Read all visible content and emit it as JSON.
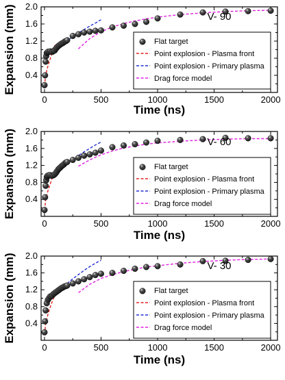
{
  "chart_data": [
    {
      "type": "scatter",
      "panel_label": "V- 90",
      "xlabel": "Time  (ns)",
      "ylabel": "Expansion  (mm)",
      "xlim": [
        -30,
        2060
      ],
      "ylim": [
        0.0,
        2.0
      ],
      "xticks": [
        0,
        500,
        1000,
        1500,
        2000
      ],
      "yticks": [
        0.4,
        0.8,
        1.2,
        1.6,
        2.0
      ],
      "ytick_labels": [
        "0.4",
        "0.8",
        "1.2",
        "1.6",
        "2.0"
      ],
      "legend": [
        "Flat target",
        "Point explosion - Plasma front",
        "Point explosion - Primary plasma",
        "Drag force model"
      ],
      "series": [
        {
          "name": "Flat target",
          "style": "marker",
          "x": [
            0,
            5,
            10,
            15,
            20,
            25,
            30,
            40,
            50,
            60,
            70,
            80,
            90,
            100,
            110,
            120,
            130,
            140,
            150,
            160,
            170,
            180,
            190,
            200,
            250,
            300,
            350,
            400,
            450,
            500,
            600,
            700,
            800,
            900,
            1000,
            1200,
            1400,
            1600,
            1800,
            2000
          ],
          "y": [
            0.17,
            0.4,
            0.72,
            0.85,
            0.92,
            0.93,
            0.95,
            0.95,
            0.96,
            0.95,
            0.95,
            0.97,
            0.98,
            1.02,
            1.05,
            1.08,
            1.1,
            1.12,
            1.14,
            1.15,
            1.17,
            1.19,
            1.2,
            1.22,
            1.32,
            1.36,
            1.4,
            1.42,
            1.44,
            1.45,
            1.52,
            1.56,
            1.6,
            1.65,
            1.73,
            1.82,
            1.87,
            1.89,
            1.9,
            1.91
          ]
        },
        {
          "name": "Point explosion - Plasma front",
          "style": "dash",
          "x": [
            0,
            10,
            20,
            30,
            40,
            50,
            60,
            70,
            80,
            90,
            100
          ],
          "y": [
            0.15,
            0.39,
            0.52,
            0.61,
            0.7,
            0.78,
            0.86,
            0.94,
            1.01,
            1.08,
            1.15
          ]
        },
        {
          "name": "Point explosion - Primary plasma",
          "style": "dash",
          "x": [
            60,
            80,
            100,
            150,
            200,
            250,
            300,
            350,
            400,
            450,
            500
          ],
          "y": [
            0.9,
            0.95,
            1.0,
            1.11,
            1.21,
            1.3,
            1.39,
            1.47,
            1.55,
            1.62,
            1.7
          ]
        },
        {
          "name": "Drag force model",
          "style": "dash",
          "x": [
            300,
            400,
            500,
            600,
            700,
            800,
            900,
            1000,
            1200,
            1400,
            1600,
            1800,
            2000
          ],
          "y": [
            1.02,
            1.26,
            1.42,
            1.53,
            1.61,
            1.67,
            1.72,
            1.76,
            1.82,
            1.86,
            1.89,
            1.91,
            1.92
          ]
        }
      ]
    },
    {
      "type": "scatter",
      "panel_label": "V- 60",
      "xlabel": "Time  (ns)",
      "ylabel": "Expansion  (mm)",
      "xlim": [
        -30,
        2060
      ],
      "ylim": [
        0.0,
        2.0
      ],
      "xticks": [
        0,
        500,
        1000,
        1500,
        2000
      ],
      "yticks": [
        0.4,
        0.8,
        1.2,
        1.6,
        2.0
      ],
      "ytick_labels": [
        "0.4",
        "0.8",
        "1.2",
        "1.6",
        "2.0"
      ],
      "legend": [
        "Flat target",
        "Point explosion - Plasma front",
        "Point explosion - Primary plasma",
        "Drag force model"
      ],
      "series": [
        {
          "name": "Flat target",
          "style": "marker",
          "x": [
            0,
            5,
            10,
            15,
            20,
            25,
            30,
            40,
            50,
            60,
            70,
            80,
            90,
            100,
            110,
            120,
            130,
            140,
            150,
            160,
            170,
            180,
            190,
            200,
            250,
            300,
            350,
            400,
            450,
            500,
            600,
            700,
            800,
            900,
            1000,
            1200,
            1400,
            1600,
            1800,
            2000
          ],
          "y": [
            0.15,
            0.45,
            0.72,
            0.85,
            0.92,
            0.95,
            0.96,
            0.97,
            0.97,
            0.96,
            0.96,
            0.97,
            0.99,
            1.02,
            1.06,
            1.1,
            1.13,
            1.15,
            1.18,
            1.2,
            1.22,
            1.25,
            1.27,
            1.28,
            1.33,
            1.38,
            1.43,
            1.46,
            1.5,
            1.55,
            1.63,
            1.67,
            1.7,
            1.74,
            1.78,
            1.8,
            1.82,
            1.85,
            1.84,
            1.84
          ]
        },
        {
          "name": "Point explosion - Plasma front",
          "style": "dash",
          "x": [
            0,
            10,
            20,
            30,
            40,
            50,
            60,
            70,
            80,
            90,
            100
          ],
          "y": [
            0.15,
            0.37,
            0.5,
            0.6,
            0.68,
            0.76,
            0.84,
            0.92,
            0.99,
            1.06,
            1.12
          ]
        },
        {
          "name": "Point explosion - Primary plasma",
          "style": "dash",
          "x": [
            60,
            80,
            100,
            150,
            200,
            250,
            300,
            350,
            400,
            450,
            500
          ],
          "y": [
            0.92,
            0.98,
            1.03,
            1.14,
            1.24,
            1.34,
            1.43,
            1.52,
            1.6,
            1.68,
            1.75
          ]
        },
        {
          "name": "Drag force model",
          "style": "dash",
          "x": [
            300,
            400,
            500,
            600,
            700,
            800,
            900,
            1000,
            1200,
            1400,
            1600,
            1800,
            2000
          ],
          "y": [
            1.18,
            1.33,
            1.45,
            1.54,
            1.61,
            1.66,
            1.7,
            1.73,
            1.77,
            1.8,
            1.82,
            1.83,
            1.83
          ]
        }
      ]
    },
    {
      "type": "scatter",
      "panel_label": "V- 30",
      "xlabel": "Time  (ns)",
      "ylabel": "Expansion  (mm)",
      "xlim": [
        -30,
        2060
      ],
      "ylim": [
        0.0,
        2.0
      ],
      "xticks": [
        0,
        500,
        1000,
        1500,
        2000
      ],
      "yticks": [
        0.4,
        0.8,
        1.2,
        1.6,
        2.0
      ],
      "ytick_labels": [
        "0.4",
        "0.8",
        "1.2",
        "1.6",
        "2.0"
      ],
      "legend": [
        "Flat target",
        "Point explosion - Plasma front",
        "Point explosion - Primary plasma",
        "Drag force model"
      ],
      "series": [
        {
          "name": "Flat target",
          "style": "marker",
          "x": [
            0,
            5,
            10,
            20,
            30,
            40,
            50,
            60,
            70,
            80,
            90,
            100,
            110,
            120,
            130,
            140,
            150,
            160,
            170,
            180,
            190,
            200,
            250,
            300,
            350,
            400,
            450,
            500,
            600,
            700,
            800,
            900,
            1000,
            1200,
            1400,
            1600,
            1800,
            2000
          ],
          "y": [
            0.19,
            0.45,
            0.71,
            0.88,
            0.96,
            1.0,
            1.04,
            1.05,
            1.07,
            1.1,
            1.12,
            1.14,
            1.16,
            1.18,
            1.2,
            1.22,
            1.24,
            1.25,
            1.27,
            1.28,
            1.29,
            1.3,
            1.35,
            1.4,
            1.45,
            1.5,
            1.55,
            1.58,
            1.6,
            1.65,
            1.7,
            1.74,
            1.76,
            1.8,
            1.88,
            1.89,
            1.91,
            1.93
          ]
        },
        {
          "name": "Point explosion - Plasma front",
          "style": "dash",
          "x": [
            0,
            10,
            20,
            30,
            40,
            50,
            60,
            70,
            80,
            90,
            100
          ],
          "y": [
            0.15,
            0.38,
            0.51,
            0.61,
            0.7,
            0.78,
            0.86,
            0.93,
            1.0,
            1.07,
            1.14
          ]
        },
        {
          "name": "Point explosion - Primary plasma",
          "style": "dash",
          "x": [
            60,
            80,
            100,
            150,
            200,
            250,
            300,
            350,
            400,
            450,
            500
          ],
          "y": [
            0.98,
            1.05,
            1.11,
            1.24,
            1.35,
            1.46,
            1.56,
            1.66,
            1.75,
            1.83,
            1.9
          ]
        },
        {
          "name": "Drag force model",
          "style": "dash",
          "x": [
            300,
            400,
            500,
            600,
            700,
            800,
            900,
            1000,
            1200,
            1400,
            1600,
            1800,
            2000
          ],
          "y": [
            1.13,
            1.33,
            1.47,
            1.56,
            1.63,
            1.69,
            1.74,
            1.77,
            1.83,
            1.87,
            1.9,
            1.92,
            1.93
          ]
        }
      ]
    }
  ],
  "colors": {
    "flat_target_marker": "#1a1a1a",
    "plasma_front": "#e0211d",
    "primary_plasma": "#1f2fd0",
    "drag_force_model": "#e01ee0",
    "axis": "#000000"
  }
}
